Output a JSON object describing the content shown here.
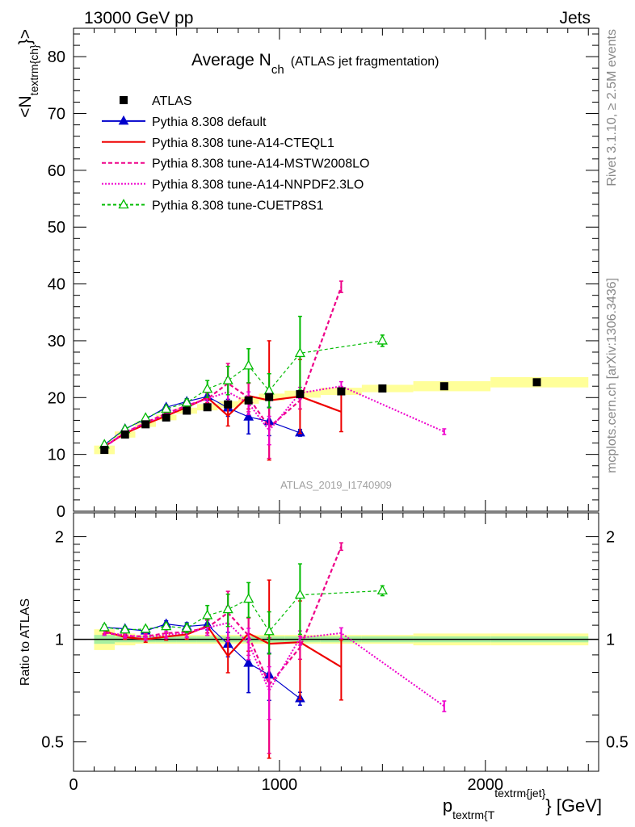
{
  "header": {
    "energy_label": "13000 GeV pp",
    "category_label": "Jets"
  },
  "side": {
    "rivet_label": "Rivet 3.1.10, ≥ 2.5M events",
    "mcplots_label": "mcplots.cern.ch [arXiv:1306.3436]"
  },
  "chart_data": {
    "type": "line",
    "title": "Average N",
    "title_sub": "ch",
    "title_suffix": "(ATLAS jet fragmentation)",
    "analysis_label": "ATLAS_2019_I1740909",
    "xlabel": "p",
    "xlabel_sub": "textrm{T",
    "xlabel_sup": "textrm{jet}",
    "xlabel_unit": "} [GeV]",
    "ylabel_main": "<N",
    "ylabel_sub": "textrm{ch}",
    "ylabel_end": "}>",
    "ylabel_ratio": "Ratio to ATLAS",
    "xlim": [
      0,
      2550
    ],
    "ylim_main": [
      0,
      85
    ],
    "ylim_ratio": [
      0.41,
      2.35
    ],
    "yscale_ratio": "log",
    "x_ticks": [
      0,
      1000,
      2000
    ],
    "y_ticks_main": [
      0,
      10,
      20,
      30,
      40,
      50,
      60,
      70,
      80
    ],
    "y_ticks_ratio": [
      0.5,
      1,
      2
    ],
    "legend_position": "top-left",
    "reference": {
      "name": "ATLAS",
      "x": [
        150,
        250,
        350,
        450,
        550,
        650,
        750,
        850,
        950,
        1100,
        1300,
        1500,
        1800,
        2250
      ],
      "y": [
        10.8,
        13.5,
        15.3,
        16.5,
        17.7,
        18.3,
        18.8,
        19.5,
        20.1,
        20.6,
        21.1,
        21.6,
        22.0,
        22.7
      ],
      "band_inner": [
        0.03,
        0.02,
        0.02,
        0.02,
        0.02,
        0.02,
        0.02,
        0.02,
        0.02,
        0.02,
        0.02,
        0.02,
        0.02,
        0.02
      ],
      "band_outer": [
        0.07,
        0.04,
        0.03,
        0.03,
        0.03,
        0.03,
        0.03,
        0.03,
        0.03,
        0.03,
        0.03,
        0.03,
        0.04,
        0.04
      ]
    },
    "series": [
      {
        "name": "Pythia 8.308 default",
        "color": "#0000cc",
        "dash": "",
        "marker": "triangle-filled",
        "x": [
          150,
          250,
          350,
          450,
          550,
          650,
          750,
          850,
          950,
          1100
        ],
        "y": [
          11.7,
          14.5,
          16.2,
          18.3,
          19.3,
          20.2,
          18.2,
          16.6,
          15.8,
          13.8
        ],
        "err": [
          0.2,
          0.2,
          0.3,
          0.4,
          0.5,
          0.7,
          1.5,
          3.0,
          2.5,
          0.6
        ]
      },
      {
        "name": "Pythia 8.308 tune-A14-CTEQL1",
        "color": "#ee0000",
        "dash": "",
        "marker": "",
        "x": [
          150,
          250,
          350,
          450,
          550,
          650,
          750,
          850,
          950,
          1100,
          1300
        ],
        "y": [
          11.4,
          13.7,
          15.3,
          16.8,
          18.3,
          20.0,
          16.8,
          20.3,
          19.5,
          20.2,
          17.5
        ],
        "err": [
          0.2,
          0.2,
          0.3,
          0.4,
          0.6,
          0.9,
          1.8,
          2.3,
          10.5,
          6.5,
          3.5
        ]
      },
      {
        "name": "Pythia 8.308 tune-A14-MSTW2008LO",
        "color": "#ee0088",
        "dash": "5,3",
        "marker": "",
        "x": [
          150,
          250,
          350,
          450,
          550,
          650,
          750,
          850,
          950,
          1100,
          1300
        ],
        "y": [
          11.3,
          13.8,
          15.6,
          17.2,
          18.6,
          19.8,
          22.5,
          20.0,
          14.8,
          19.5,
          39.5
        ],
        "err": [
          0.2,
          0.2,
          0.3,
          0.4,
          0.6,
          1.0,
          3.5,
          2.5,
          5.5,
          1.5,
          1.0
        ]
      },
      {
        "name": "Pythia 8.308 tune-A14-NNPDF2.3LO",
        "color": "#ee00cc",
        "dash": "2,2",
        "marker": "",
        "x": [
          150,
          250,
          350,
          450,
          550,
          650,
          750,
          850,
          950,
          1100,
          1300,
          1800
        ],
        "y": [
          11.3,
          13.9,
          15.5,
          17.0,
          18.5,
          19.8,
          21.0,
          19.0,
          14.2,
          20.8,
          22.0,
          14.0
        ],
        "err": [
          0.2,
          0.2,
          0.3,
          0.4,
          0.6,
          1.0,
          2.5,
          2.0,
          2.5,
          1.0,
          0.8,
          0.5
        ]
      },
      {
        "name": "Pythia 8.308 tune-CUETP8S1",
        "color": "#00bb00",
        "dash": "4,3",
        "marker": "triangle-open",
        "x": [
          150,
          250,
          350,
          450,
          550,
          650,
          750,
          850,
          950,
          1100,
          1500
        ],
        "y": [
          11.7,
          14.4,
          16.4,
          18.0,
          19.1,
          21.5,
          23.0,
          25.6,
          21.2,
          27.8,
          30.0
        ],
        "err": [
          0.2,
          0.2,
          0.3,
          0.4,
          0.6,
          1.5,
          2.5,
          3.0,
          3.0,
          6.5,
          1.0
        ]
      }
    ]
  }
}
